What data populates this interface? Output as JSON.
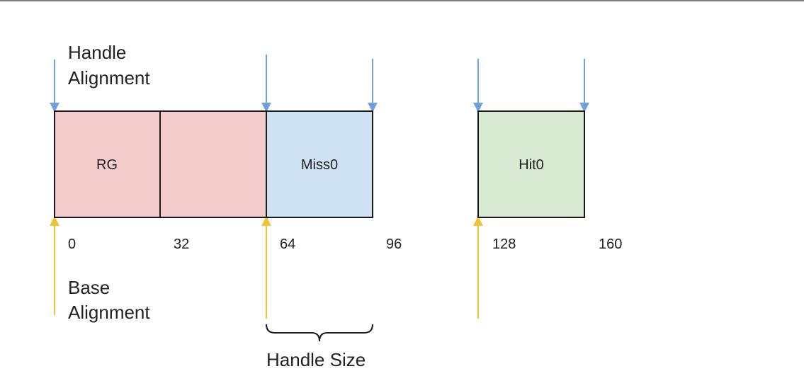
{
  "labels": {
    "handle_alignment_line1": "Handle",
    "handle_alignment_line2": "Alignment",
    "base_alignment_line1": "Base",
    "base_alignment_line2": "Alignment",
    "handle_size": "Handle Size"
  },
  "cells": [
    {
      "id": "rg",
      "label": "RG",
      "fill": "#f4cccc"
    },
    {
      "id": "rg-second",
      "label": "",
      "fill": "#f4cccc"
    },
    {
      "id": "miss0",
      "label": "Miss0",
      "fill": "#cfe2f3"
    },
    {
      "id": "hit0",
      "label": "Hit0",
      "fill": "#d9ead3"
    }
  ],
  "ticks": [
    "0",
    "32",
    "64",
    "96",
    "128",
    "160"
  ],
  "colors": {
    "handle_arrow": "#6fa0e0",
    "base_arrow": "#f1c232",
    "stroke": "#1a1a1a"
  }
}
